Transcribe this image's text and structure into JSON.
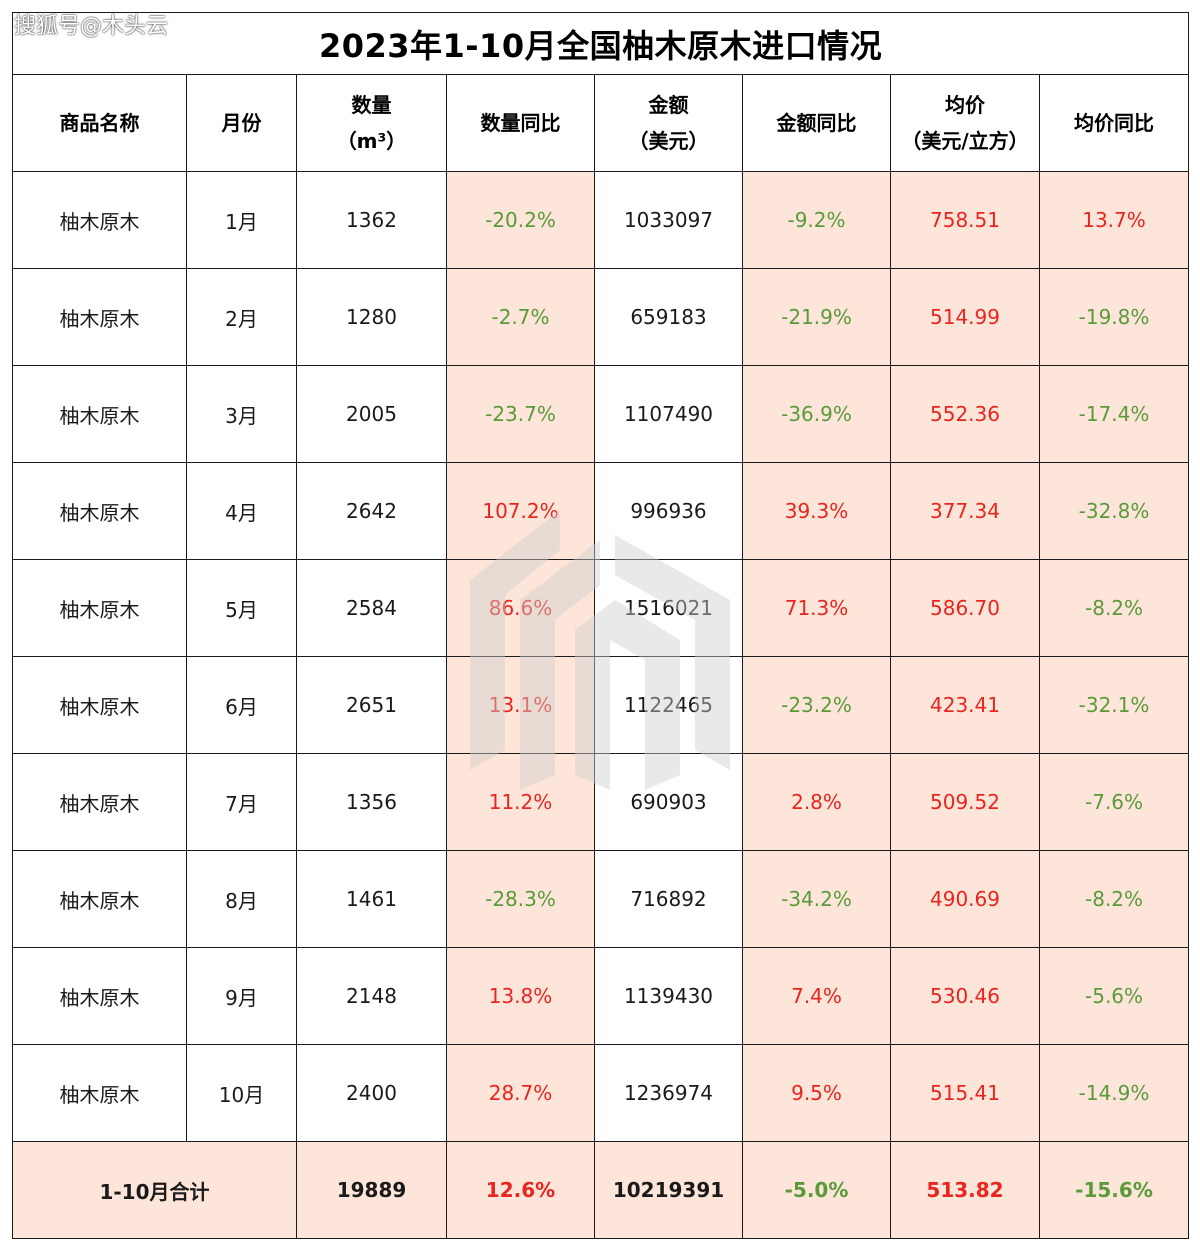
{
  "watermark": "搜狐号@木头云",
  "chart_data": {
    "type": "table",
    "title": "2023年1-10月全国柚木原木进口情况",
    "headers": [
      [
        "商品名称"
      ],
      [
        "月份"
      ],
      [
        "数量",
        "（m³）"
      ],
      [
        "数量同比"
      ],
      [
        "金额",
        "（美元）"
      ],
      [
        "金额同比"
      ],
      [
        "均价",
        "（美元/立方）"
      ],
      [
        "均价同比"
      ]
    ],
    "rows": [
      {
        "name": "柚木原木",
        "month": "1月",
        "qty": "1362",
        "qty_yoy": "-20.2%",
        "amount": "1033097",
        "amount_yoy": "-9.2%",
        "price": "758.51",
        "price_yoy": "13.7%"
      },
      {
        "name": "柚木原木",
        "month": "2月",
        "qty": "1280",
        "qty_yoy": "-2.7%",
        "amount": "659183",
        "amount_yoy": "-21.9%",
        "price": "514.99",
        "price_yoy": "-19.8%"
      },
      {
        "name": "柚木原木",
        "month": "3月",
        "qty": "2005",
        "qty_yoy": "-23.7%",
        "amount": "1107490",
        "amount_yoy": "-36.9%",
        "price": "552.36",
        "price_yoy": "-17.4%"
      },
      {
        "name": "柚木原木",
        "month": "4月",
        "qty": "2642",
        "qty_yoy": "107.2%",
        "amount": "996936",
        "amount_yoy": "39.3%",
        "price": "377.34",
        "price_yoy": "-32.8%"
      },
      {
        "name": "柚木原木",
        "month": "5月",
        "qty": "2584",
        "qty_yoy": "86.6%",
        "amount": "1516021",
        "amount_yoy": "71.3%",
        "price": "586.70",
        "price_yoy": "-8.2%"
      },
      {
        "name": "柚木原木",
        "month": "6月",
        "qty": "2651",
        "qty_yoy": "13.1%",
        "amount": "1122465",
        "amount_yoy": "-23.2%",
        "price": "423.41",
        "price_yoy": "-32.1%"
      },
      {
        "name": "柚木原木",
        "month": "7月",
        "qty": "1356",
        "qty_yoy": "11.2%",
        "amount": "690903",
        "amount_yoy": "2.8%",
        "price": "509.52",
        "price_yoy": "-7.6%"
      },
      {
        "name": "柚木原木",
        "month": "8月",
        "qty": "1461",
        "qty_yoy": "-28.3%",
        "amount": "716892",
        "amount_yoy": "-34.2%",
        "price": "490.69",
        "price_yoy": "-8.2%"
      },
      {
        "name": "柚木原木",
        "month": "9月",
        "qty": "2148",
        "qty_yoy": "13.8%",
        "amount": "1139430",
        "amount_yoy": "7.4%",
        "price": "530.46",
        "price_yoy": "-5.6%"
      },
      {
        "name": "柚木原木",
        "month": "10月",
        "qty": "2400",
        "qty_yoy": "28.7%",
        "amount": "1236974",
        "amount_yoy": "9.5%",
        "price": "515.41",
        "price_yoy": "-14.9%"
      }
    ],
    "total": {
      "label": "1-10月合计",
      "qty": "19889",
      "qty_yoy": "12.6%",
      "amount": "10219391",
      "amount_yoy": "-5.0%",
      "price": "513.82",
      "price_yoy": "-15.6%"
    }
  },
  "colors": {
    "shade": "#fde5d9",
    "positive": "#e8251e",
    "negative": "#5a9a3a",
    "border": "#1a1a1a"
  },
  "icons": {
    "logo": "wood-logo-icon"
  }
}
